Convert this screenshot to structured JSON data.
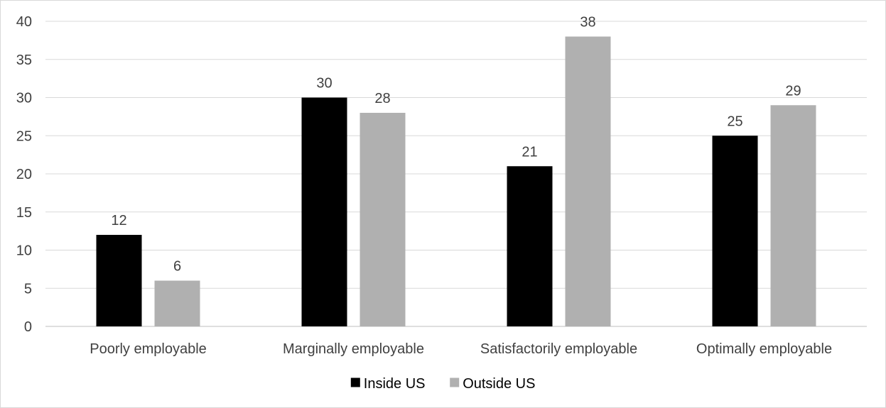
{
  "chart_data": {
    "type": "bar",
    "title": "",
    "xlabel": "",
    "ylabel": "",
    "categories": [
      "Poorly employable",
      "Marginally employable",
      "Satisfactorily employable",
      "Optimally employable"
    ],
    "series": [
      {
        "name": "Inside US",
        "values": [
          12,
          30,
          21,
          25
        ],
        "color": "#000000"
      },
      {
        "name": "Outside US",
        "values": [
          6,
          28,
          38,
          29
        ],
        "color": "#b0b0b0"
      }
    ],
    "ylim": [
      0,
      40
    ],
    "yticks": [
      0,
      5,
      10,
      15,
      20,
      25,
      30,
      35,
      40
    ],
    "grid": true,
    "legend": "bottom"
  }
}
